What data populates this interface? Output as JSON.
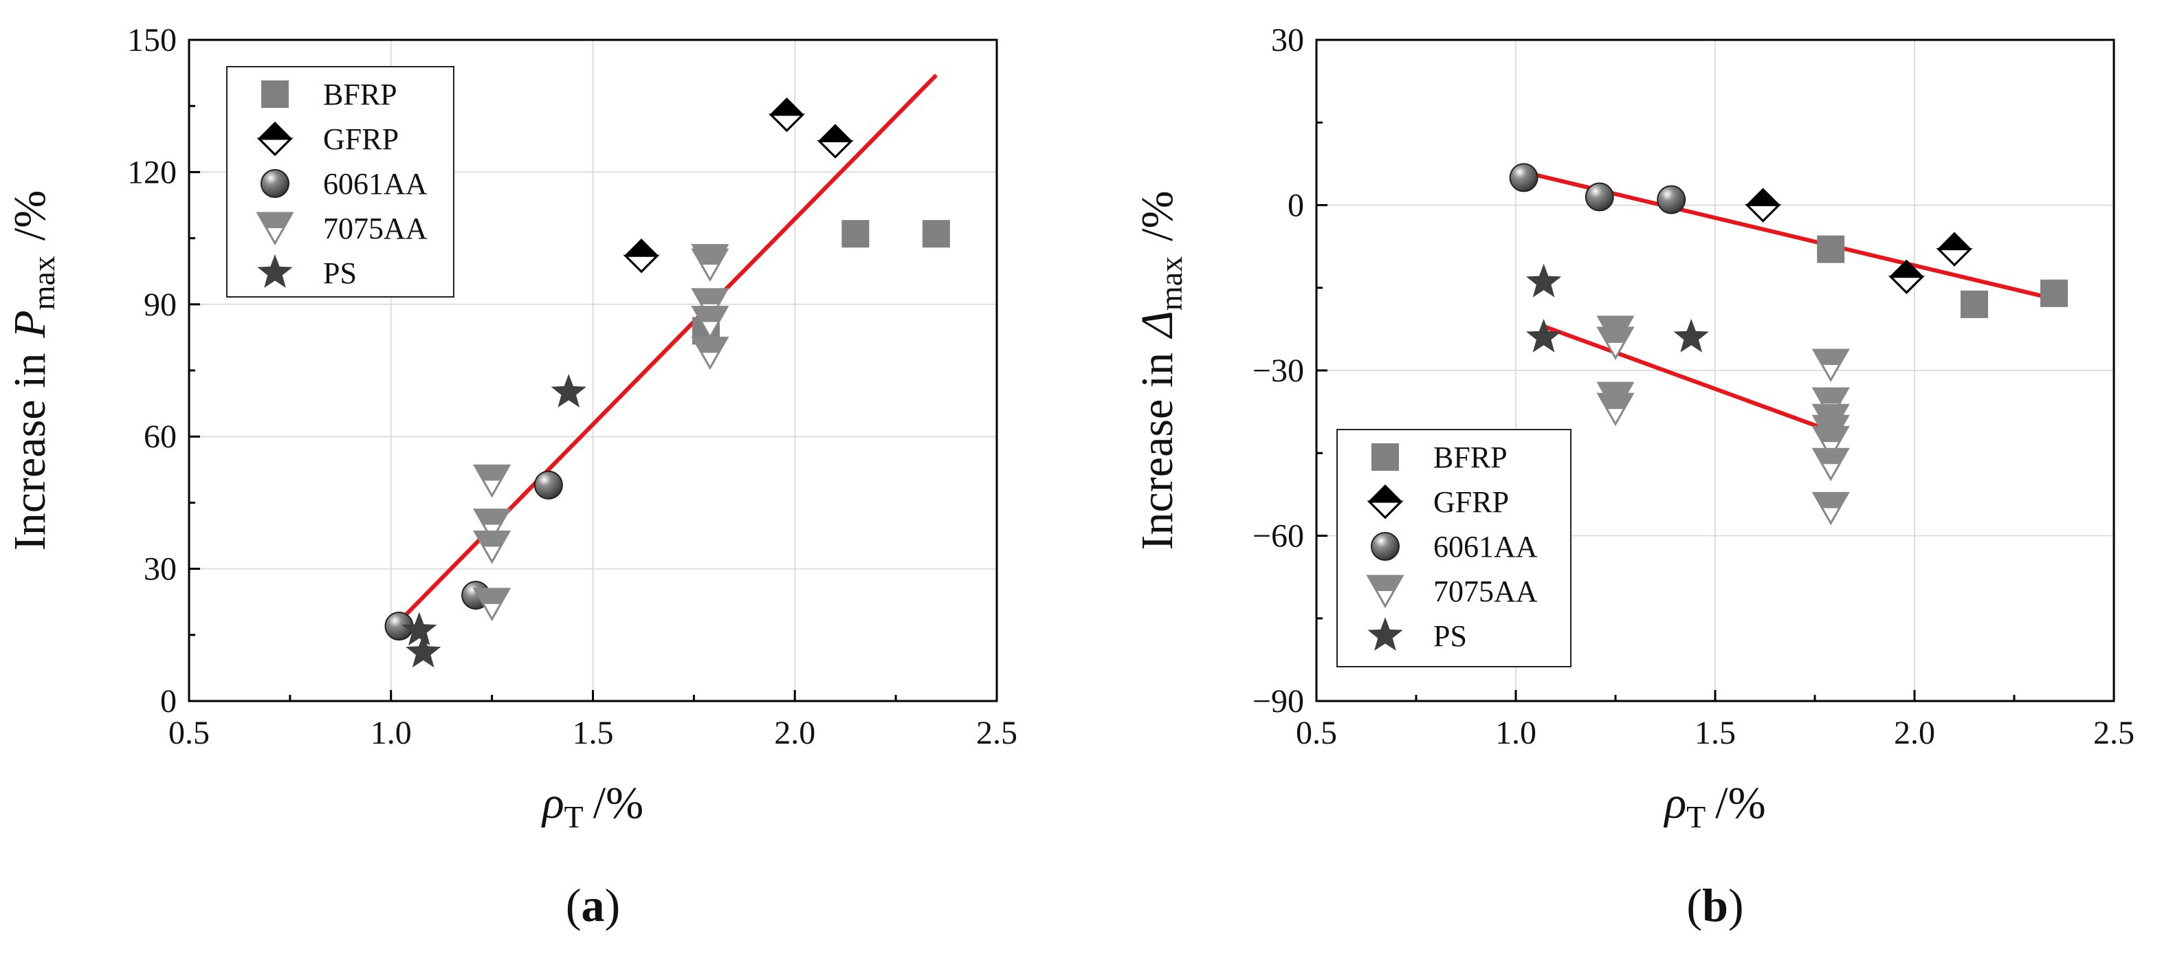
{
  "colors": {
    "axis": "#000000",
    "grid": "#dddddd",
    "fit_line": "#e8161b",
    "bfrp": "#808080",
    "gfrp": "#000000",
    "aa6061": "#3a3a3a",
    "aa7075": "#888888",
    "ps": "#3f3f3f"
  },
  "chart_data": [
    {
      "type": "scatter",
      "panel_label": "a",
      "title": "",
      "ylabel": {
        "prefix": "Increase in",
        "symbol": "P",
        "subscript": "max",
        "unit": "/%"
      },
      "xlabel": {
        "symbol": "ρ",
        "subscript": "T",
        "unit": "/%"
      },
      "xlim": [
        0.5,
        2.5
      ],
      "ylim": [
        0,
        150
      ],
      "xticks": [
        "0.5",
        "1.0",
        "1.5",
        "2.0",
        "2.5"
      ],
      "xtick_values": [
        0.5,
        1.0,
        1.5,
        2.0,
        2.5
      ],
      "yticks": [
        "0",
        "30",
        "60",
        "90",
        "120",
        "150"
      ],
      "ytick_values": [
        0,
        30,
        60,
        90,
        120,
        150
      ],
      "grid": true,
      "legend_position": "top-left",
      "series": [
        {
          "name": "BFRP",
          "marker": "square",
          "points": [
            [
              2.15,
              106
            ],
            [
              2.35,
              106
            ],
            [
              1.78,
              84
            ]
          ]
        },
        {
          "name": "GFRP",
          "marker": "diamond-half",
          "points": [
            [
              1.62,
              101
            ],
            [
              1.98,
              133
            ],
            [
              2.1,
              127
            ]
          ]
        },
        {
          "name": "6061AA",
          "marker": "sphere",
          "points": [
            [
              1.02,
              17
            ],
            [
              1.21,
              24
            ],
            [
              1.39,
              49
            ]
          ]
        },
        {
          "name": "7075AA",
          "marker": "triangle-down-half",
          "points": [
            [
              1.25,
              50
            ],
            [
              1.25,
              40
            ],
            [
              1.25,
              35
            ],
            [
              1.25,
              22
            ],
            [
              1.79,
              100
            ],
            [
              1.79,
              99
            ],
            [
              1.79,
              90
            ],
            [
              1.79,
              86
            ],
            [
              1.79,
              79
            ]
          ]
        },
        {
          "name": "PS",
          "marker": "star",
          "points": [
            [
              1.07,
              16
            ],
            [
              1.08,
              11
            ],
            [
              1.44,
              70
            ]
          ]
        }
      ],
      "fit_lines": [
        {
          "x": [
            1.02,
            2.35
          ],
          "y": [
            18,
            142
          ]
        }
      ]
    },
    {
      "type": "scatter",
      "panel_label": "b",
      "title": "",
      "ylabel": {
        "prefix": "Increase in",
        "symbol": "Δ",
        "subscript": "max",
        "unit": "/%"
      },
      "xlabel": {
        "symbol": "ρ",
        "subscript": "T",
        "unit": "/%"
      },
      "xlim": [
        0.5,
        2.5
      ],
      "ylim": [
        -90,
        30
      ],
      "xticks": [
        "0.5",
        "1.0",
        "1.5",
        "2.0",
        "2.5"
      ],
      "xtick_values": [
        0.5,
        1.0,
        1.5,
        2.0,
        2.5
      ],
      "yticks": [
        "−90",
        "−60",
        "−30",
        "0",
        "30"
      ],
      "ytick_values": [
        -90,
        -60,
        -30,
        0,
        30
      ],
      "grid": true,
      "legend_position": "bottom-left",
      "series": [
        {
          "name": "BFRP",
          "marker": "square",
          "points": [
            [
              1.79,
              -8
            ],
            [
              2.15,
              -18
            ],
            [
              2.35,
              -16
            ]
          ]
        },
        {
          "name": "GFRP",
          "marker": "diamond-half",
          "points": [
            [
              1.62,
              0
            ],
            [
              1.98,
              -13
            ],
            [
              2.1,
              -8
            ]
          ]
        },
        {
          "name": "6061AA",
          "marker": "sphere",
          "points": [
            [
              1.02,
              5
            ],
            [
              1.21,
              1.5
            ],
            [
              1.39,
              1
            ]
          ]
        },
        {
          "name": "7075AA",
          "marker": "triangle-down-half",
          "points": [
            [
              1.25,
              -23
            ],
            [
              1.25,
              -25
            ],
            [
              1.25,
              -35
            ],
            [
              1.25,
              -37
            ],
            [
              1.79,
              -29
            ],
            [
              1.79,
              -36
            ],
            [
              1.79,
              -39
            ],
            [
              1.79,
              -41
            ],
            [
              1.79,
              -43
            ],
            [
              1.79,
              -47
            ],
            [
              1.79,
              -55
            ]
          ]
        },
        {
          "name": "PS",
          "marker": "star",
          "points": [
            [
              1.07,
              -14
            ],
            [
              1.07,
              -24
            ],
            [
              1.44,
              -24
            ]
          ]
        }
      ],
      "fit_lines": [
        {
          "x": [
            1.02,
            2.35
          ],
          "y": [
            6,
            -17
          ]
        },
        {
          "x": [
            1.07,
            1.79
          ],
          "y": [
            -22,
            -41
          ]
        }
      ]
    }
  ]
}
